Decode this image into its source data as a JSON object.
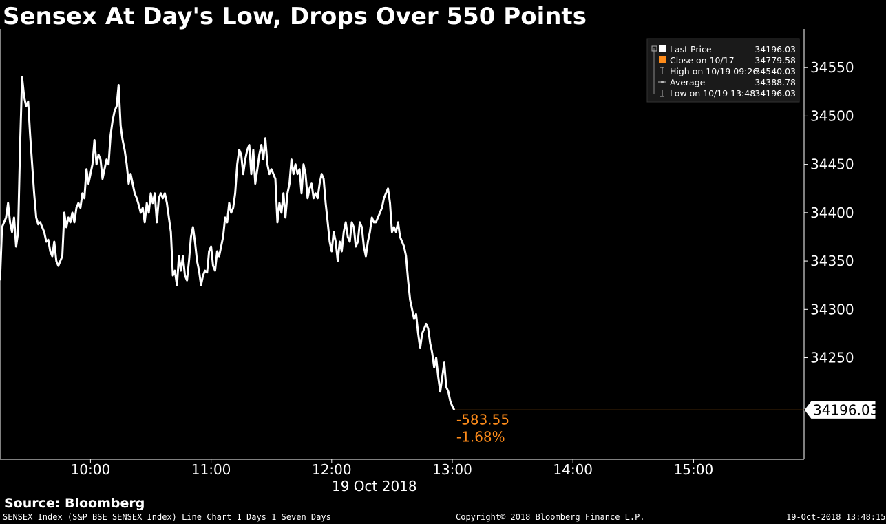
{
  "title": "Sensex At Day's Low, Drops Over 550 Points",
  "source": "Source: Bloomberg",
  "footer": {
    "left": "SENSEX Index (S&P BSE SENSEX Index) Line Chart 1 Days 1 Seven Days",
    "center": "Copyright© 2018 Bloomberg Finance L.P.",
    "right": "19-Oct-2018 13:48:15"
  },
  "legend": [
    {
      "label": "Last Price",
      "value": "34196.03",
      "marker": "white-square"
    },
    {
      "label": "Close on 10/17 ----",
      "value": "34779.58",
      "marker": "orange-square"
    },
    {
      "label": "High on 10/19 09:26",
      "value": "34540.03",
      "marker": "high-tick"
    },
    {
      "label": "Average",
      "value": "34388.78",
      "marker": "average-line"
    },
    {
      "label": "Low on 10/19 13:48",
      "value": "34196.03",
      "marker": "low-tick"
    }
  ],
  "colors": {
    "background": "#000000",
    "line": "#ffffff",
    "accent": "#ff8c1a"
  },
  "annotations": {
    "last_price_label": "34196.03",
    "change": "-583.55",
    "change_pct": "-1.68%"
  },
  "chart_data": {
    "type": "line",
    "title": "Sensex At Day's Low, Drops Over 550 Points",
    "xlabel": "19 Oct 2018",
    "ylabel": "",
    "x_ticks": [
      "10:00",
      "11:00",
      "12:00",
      "13:00",
      "14:00",
      "15:00"
    ],
    "y_ticks": [
      34250,
      34300,
      34350,
      34400,
      34450,
      34500,
      34550
    ],
    "ylim": [
      34145,
      34590
    ],
    "x_range": [
      "09:15",
      "15:55"
    ],
    "grid": false,
    "legend_position": "top-right",
    "series": [
      {
        "points": [
          [
            "09:15",
            34330
          ],
          [
            "09:16",
            34385
          ],
          [
            "09:18",
            34395
          ],
          [
            "09:19",
            34410
          ],
          [
            "09:20",
            34390
          ],
          [
            "09:21",
            34380
          ],
          [
            "09:22",
            34395
          ],
          [
            "09:23",
            34365
          ],
          [
            "09:24",
            34380
          ],
          [
            "09:25",
            34470
          ],
          [
            "09:26",
            34540
          ],
          [
            "09:27",
            34520
          ],
          [
            "09:28",
            34510
          ],
          [
            "09:29",
            34515
          ],
          [
            "09:30",
            34480
          ],
          [
            "09:31",
            34450
          ],
          [
            "09:32",
            34420
          ],
          [
            "09:33",
            34395
          ],
          [
            "09:34",
            34388
          ],
          [
            "09:35",
            34390
          ],
          [
            "09:37",
            34380
          ],
          [
            "09:38",
            34370
          ],
          [
            "09:39",
            34372
          ],
          [
            "09:40",
            34360
          ],
          [
            "09:41",
            34355
          ],
          [
            "09:42",
            34370
          ],
          [
            "09:43",
            34350
          ],
          [
            "09:44",
            34345
          ],
          [
            "09:46",
            34355
          ],
          [
            "09:47",
            34400
          ],
          [
            "09:48",
            34385
          ],
          [
            "09:49",
            34395
          ],
          [
            "09:50",
            34390
          ],
          [
            "09:51",
            34400
          ],
          [
            "09:52",
            34390
          ],
          [
            "09:53",
            34405
          ],
          [
            "09:54",
            34410
          ],
          [
            "09:55",
            34405
          ],
          [
            "09:56",
            34420
          ],
          [
            "09:57",
            34415
          ],
          [
            "09:58",
            34445
          ],
          [
            "09:59",
            34430
          ],
          [
            "10:00",
            34440
          ],
          [
            "10:01",
            34450
          ],
          [
            "10:02",
            34475
          ],
          [
            "10:03",
            34450
          ],
          [
            "10:04",
            34460
          ],
          [
            "10:05",
            34455
          ],
          [
            "10:06",
            34435
          ],
          [
            "10:07",
            34445
          ],
          [
            "10:08",
            34455
          ],
          [
            "10:09",
            34450
          ],
          [
            "10:10",
            34480
          ],
          [
            "10:11",
            34495
          ],
          [
            "10:12",
            34505
          ],
          [
            "10:13",
            34510
          ],
          [
            "10:14",
            34532
          ],
          [
            "10:15",
            34490
          ],
          [
            "10:16",
            34475
          ],
          [
            "10:17",
            34465
          ],
          [
            "10:18",
            34450
          ],
          [
            "10:19",
            34430
          ],
          [
            "10:20",
            34440
          ],
          [
            "10:21",
            34430
          ],
          [
            "10:22",
            34420
          ],
          [
            "10:23",
            34415
          ],
          [
            "10:24",
            34408
          ],
          [
            "10:25",
            34400
          ],
          [
            "10:26",
            34405
          ],
          [
            "10:27",
            34390
          ],
          [
            "10:28",
            34410
          ],
          [
            "10:29",
            34400
          ],
          [
            "10:30",
            34420
          ],
          [
            "10:31",
            34410
          ],
          [
            "10:32",
            34420
          ],
          [
            "10:33",
            34390
          ],
          [
            "10:34",
            34415
          ],
          [
            "10:35",
            34420
          ],
          [
            "10:36",
            34415
          ],
          [
            "10:37",
            34420
          ],
          [
            "10:38",
            34410
          ],
          [
            "10:39",
            34395
          ],
          [
            "10:40",
            34380
          ],
          [
            "10:41",
            34335
          ],
          [
            "10:42",
            34340
          ],
          [
            "10:43",
            34325
          ],
          [
            "10:44",
            34355
          ],
          [
            "10:45",
            34340
          ],
          [
            "10:46",
            34355
          ],
          [
            "10:47",
            34335
          ],
          [
            "10:48",
            34330
          ],
          [
            "10:49",
            34350
          ],
          [
            "10:50",
            34375
          ],
          [
            "10:51",
            34385
          ],
          [
            "10:52",
            34370
          ],
          [
            "10:53",
            34350
          ],
          [
            "10:54",
            34340
          ],
          [
            "10:55",
            34325
          ],
          [
            "10:56",
            34335
          ],
          [
            "10:57",
            34340
          ],
          [
            "10:58",
            34338
          ],
          [
            "10:59",
            34360
          ],
          [
            "11:00",
            34365
          ],
          [
            "11:01",
            34345
          ],
          [
            "11:02",
            34340
          ],
          [
            "11:03",
            34360
          ],
          [
            "11:04",
            34355
          ],
          [
            "11:05",
            34365
          ],
          [
            "11:06",
            34375
          ],
          [
            "11:07",
            34395
          ],
          [
            "11:08",
            34390
          ],
          [
            "11:09",
            34410
          ],
          [
            "11:10",
            34400
          ],
          [
            "11:11",
            34405
          ],
          [
            "11:12",
            34420
          ],
          [
            "11:13",
            34450
          ],
          [
            "11:14",
            34465
          ],
          [
            "11:15",
            34460
          ],
          [
            "11:16",
            34440
          ],
          [
            "11:17",
            34455
          ],
          [
            "11:18",
            34465
          ],
          [
            "11:19",
            34470
          ],
          [
            "11:20",
            34440
          ],
          [
            "11:21",
            34465
          ],
          [
            "11:22",
            34430
          ],
          [
            "11:23",
            34445
          ],
          [
            "11:24",
            34460
          ],
          [
            "11:25",
            34470
          ],
          [
            "11:26",
            34455
          ],
          [
            "11:27",
            34477
          ],
          [
            "11:28",
            34450
          ],
          [
            "11:29",
            34440
          ],
          [
            "11:30",
            34445
          ],
          [
            "11:31",
            34440
          ],
          [
            "11:32",
            34435
          ],
          [
            "11:33",
            34390
          ],
          [
            "11:34",
            34410
          ],
          [
            "11:35",
            34400
          ],
          [
            "11:36",
            34420
          ],
          [
            "11:37",
            34395
          ],
          [
            "11:38",
            34420
          ],
          [
            "11:39",
            34430
          ],
          [
            "11:40",
            34455
          ],
          [
            "11:41",
            34440
          ],
          [
            "11:42",
            34450
          ],
          [
            "11:43",
            34440
          ],
          [
            "11:44",
            34445
          ],
          [
            "11:45",
            34420
          ],
          [
            "11:46",
            34450
          ],
          [
            "11:47",
            34440
          ],
          [
            "11:48",
            34415
          ],
          [
            "11:49",
            34425
          ],
          [
            "11:50",
            34430
          ],
          [
            "11:51",
            34415
          ],
          [
            "11:52",
            34420
          ],
          [
            "11:53",
            34415
          ],
          [
            "11:54",
            34430
          ],
          [
            "11:55",
            34440
          ],
          [
            "11:56",
            34435
          ],
          [
            "11:57",
            34410
          ],
          [
            "11:58",
            34390
          ],
          [
            "11:59",
            34370
          ],
          [
            "12:00",
            34360
          ],
          [
            "12:01",
            34380
          ],
          [
            "12:02",
            34370
          ],
          [
            "12:03",
            34350
          ],
          [
            "12:04",
            34370
          ],
          [
            "12:05",
            34360
          ],
          [
            "12:06",
            34380
          ],
          [
            "12:07",
            34390
          ],
          [
            "12:08",
            34375
          ],
          [
            "12:09",
            34370
          ],
          [
            "12:10",
            34390
          ],
          [
            "12:11",
            34385
          ],
          [
            "12:12",
            34365
          ],
          [
            "12:13",
            34370
          ],
          [
            "12:14",
            34390
          ],
          [
            "12:15",
            34385
          ],
          [
            "12:16",
            34365
          ],
          [
            "12:17",
            34355
          ],
          [
            "12:18",
            34370
          ],
          [
            "12:19",
            34380
          ],
          [
            "12:20",
            34395
          ],
          [
            "12:21",
            34390
          ],
          [
            "12:22",
            34390
          ],
          [
            "12:23",
            34395
          ],
          [
            "12:24",
            34400
          ],
          [
            "12:25",
            34405
          ],
          [
            "12:26",
            34415
          ],
          [
            "12:27",
            34420
          ],
          [
            "12:28",
            34425
          ],
          [
            "12:29",
            34410
          ],
          [
            "12:30",
            34380
          ],
          [
            "12:31",
            34385
          ],
          [
            "12:32",
            34380
          ],
          [
            "12:33",
            34390
          ],
          [
            "12:34",
            34375
          ],
          [
            "12:35",
            34370
          ],
          [
            "12:36",
            34365
          ],
          [
            "12:37",
            34355
          ],
          [
            "12:38",
            34330
          ],
          [
            "12:39",
            34310
          ],
          [
            "12:40",
            34300
          ],
          [
            "12:41",
            34290
          ],
          [
            "12:42",
            34295
          ],
          [
            "12:43",
            34275
          ],
          [
            "12:44",
            34260
          ],
          [
            "12:45",
            34275
          ],
          [
            "12:46",
            34280
          ],
          [
            "12:47",
            34285
          ],
          [
            "12:48",
            34280
          ],
          [
            "12:49",
            34265
          ],
          [
            "12:50",
            34255
          ],
          [
            "12:51",
            34240
          ],
          [
            "12:52",
            34250
          ],
          [
            "12:53",
            34230
          ],
          [
            "12:54",
            34215
          ],
          [
            "12:55",
            34230
          ],
          [
            "12:56",
            34245
          ],
          [
            "12:57",
            34220
          ],
          [
            "12:58",
            34215
          ],
          [
            "12:59",
            34205
          ],
          [
            "13:00",
            34200
          ],
          [
            "13:01",
            34196.03
          ]
        ],
        "color": "#ffffff"
      }
    ]
  }
}
